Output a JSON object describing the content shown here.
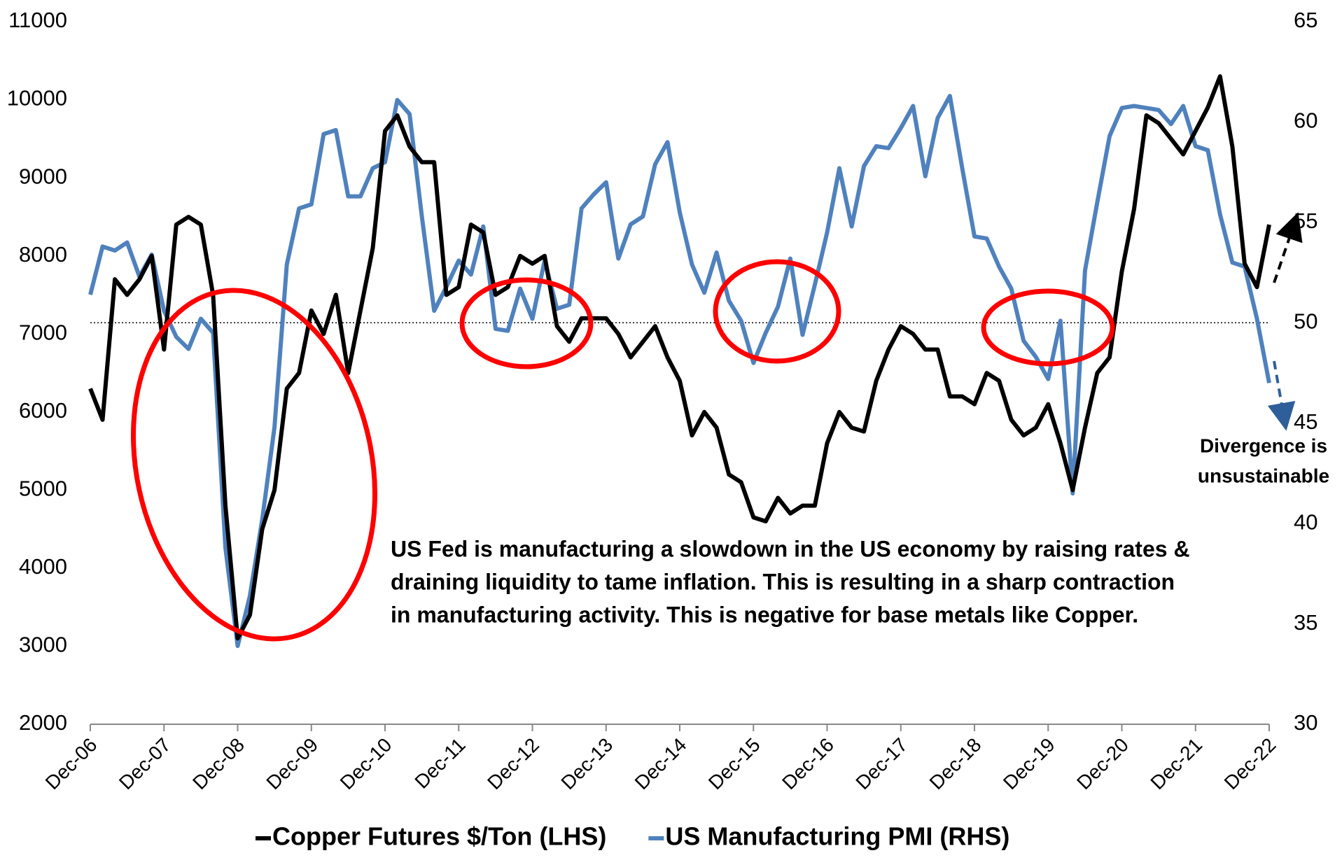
{
  "chart_data": {
    "type": "line",
    "categories": [
      "Dec-06",
      null,
      null,
      null,
      null,
      null,
      "Dec-07",
      null,
      null,
      null,
      null,
      null,
      "Dec-08",
      null,
      null,
      null,
      null,
      null,
      "Dec-09",
      null,
      null,
      null,
      null,
      null,
      "Dec-10",
      null,
      null,
      null,
      null,
      null,
      "Dec-11",
      null,
      null,
      null,
      null,
      null,
      "Dec-12",
      null,
      null,
      null,
      null,
      null,
      "Dec-13",
      null,
      null,
      null,
      null,
      null,
      "Dec-14",
      null,
      null,
      null,
      null,
      null,
      "Dec-15",
      null,
      null,
      null,
      null,
      null,
      "Dec-16",
      null,
      null,
      null,
      null,
      null,
      "Dec-17",
      null,
      null,
      null,
      null,
      null,
      "Dec-18",
      null,
      null,
      null,
      null,
      null,
      "Dec-19",
      null,
      null,
      null,
      null,
      null,
      "Dec-20",
      null,
      null,
      null,
      null,
      null,
      "Dec-21",
      null,
      null,
      null,
      null,
      null,
      "Dec-22"
    ],
    "series": [
      {
        "name": "Copper Futures $/Ton (LHS)",
        "color": "#000000",
        "axis": "y",
        "values": [
          6300,
          5900,
          7700,
          7500,
          7700,
          8000,
          6800,
          8400,
          8500,
          8400,
          7500,
          4800,
          3100,
          3400,
          4500,
          5000,
          6300,
          6500,
          7300,
          7000,
          7500,
          6500,
          7300,
          8100,
          9600,
          9800,
          9400,
          9200,
          9200,
          7500,
          7600,
          8400,
          8300,
          7500,
          7600,
          8000,
          7900,
          8000,
          7100,
          6900,
          7200,
          7200,
          7200,
          7000,
          6700,
          6900,
          7100,
          6700,
          6400,
          5700,
          6000,
          5800,
          5200,
          5100,
          4650,
          4600,
          4900,
          4700,
          4800,
          4800,
          5600,
          6000,
          5800,
          5750,
          6400,
          6800,
          7100,
          7000,
          6800,
          6800,
          6200,
          6200,
          6100,
          6500,
          6400,
          5900,
          5700,
          5800,
          6100,
          5600,
          5000,
          5800,
          6500,
          6700,
          7800,
          8600,
          9800,
          9700,
          9500,
          9300,
          9600,
          9900,
          10300,
          9400,
          7900,
          7600,
          8400
        ]
      },
      {
        "name": "US Manufacturing PMI (RHS)",
        "color": "#4f81bd",
        "axis": "y2",
        "values": [
          51.4,
          53.8,
          53.6,
          54,
          52.3,
          53.4,
          50.6,
          49.3,
          48.7,
          50.2,
          49.5,
          38.8,
          33.9,
          36.4,
          40.2,
          44.8,
          52.9,
          55.7,
          55.9,
          59.4,
          59.6,
          56.3,
          56.3,
          57.7,
          58,
          61.1,
          60.4,
          55.3,
          50.6,
          51.8,
          53.1,
          52.4,
          54.8,
          49.7,
          49.6,
          51.7,
          50.2,
          53.1,
          50.7,
          50.9,
          55.7,
          56.4,
          57.0,
          53.2,
          54.9,
          55.3,
          57.9,
          59.0,
          55.5,
          52.9,
          51.5,
          53.5,
          51.1,
          50.1,
          48.0,
          49.5,
          50.8,
          53.2,
          49.4,
          51.9,
          54.5,
          57.7,
          54.8,
          57.8,
          58.8,
          58.7,
          59.7,
          60.8,
          57.3,
          60.2,
          61.3,
          57.7,
          54.3,
          54.2,
          52.8,
          51.7,
          49.1,
          48.3,
          47.2,
          50.1,
          41.5,
          52.6,
          56.0,
          59.3,
          60.7,
          60.8,
          60.7,
          60.6,
          59.9,
          60.8,
          58.8,
          58.6,
          55.4,
          53.0,
          52.8,
          50.2,
          47.0
        ]
      }
    ],
    "ylim": [
      2000,
      11000
    ],
    "yticks": [
      2000,
      3000,
      4000,
      5000,
      6000,
      7000,
      8000,
      9000,
      10000,
      11000
    ],
    "y2lim": [
      30,
      65
    ],
    "y2ticks": [
      30,
      35,
      40,
      45,
      50,
      55,
      60,
      65
    ],
    "reference_line": {
      "axis": "y2",
      "value": 50
    },
    "legend": "bottom",
    "annotations": [
      {
        "lines": [
          "US Fed is manufacturing a slowdown in the US economy by raising rates &",
          "draining liquidity to tame inflation. This is resulting in a sharp contraction",
          "in manufacturing activity. This is negative for base metals like Copper."
        ]
      },
      {
        "lines": [
          "Divergence is",
          "unsustainable"
        ]
      }
    ]
  }
}
